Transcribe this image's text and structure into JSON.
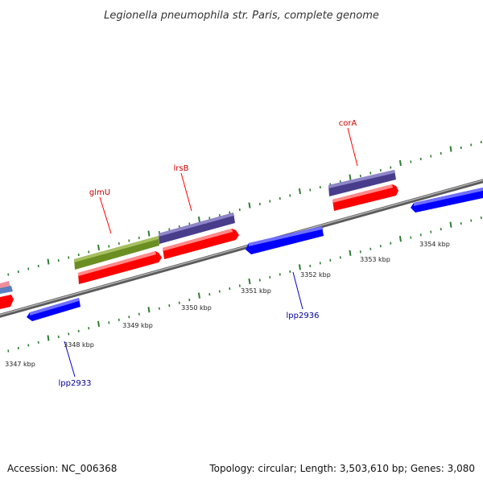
{
  "title": "Legionella pneumophila str. Paris, complete genome",
  "footer": {
    "accession": "Accession: NC_006368",
    "topology": "Topology: circular; Length: 3,503,610 bp; Genes: 3,080"
  },
  "colors": {
    "backbone": "#888888",
    "tick": "#2e7d32",
    "forward_gene": "#ff0000",
    "reverse_gene": "#0000ff",
    "olive_gene": "#6b8e23",
    "slate_gene": "#483d8b",
    "forward_label": "#cc0000",
    "reverse_label": "#000099"
  },
  "scale_labels": [
    "3347 kbp",
    "3348 kbp",
    "3349 kbp",
    "3350 kbp",
    "3351 kbp",
    "3352 kbp",
    "3353 kbp",
    "3354 kbp"
  ],
  "gene_labels": {
    "glmU": "glmU",
    "lrsB": "lrsB",
    "corA": "corA",
    "lpp2936": "lpp2936",
    "lpp2933": "lpp2933"
  }
}
